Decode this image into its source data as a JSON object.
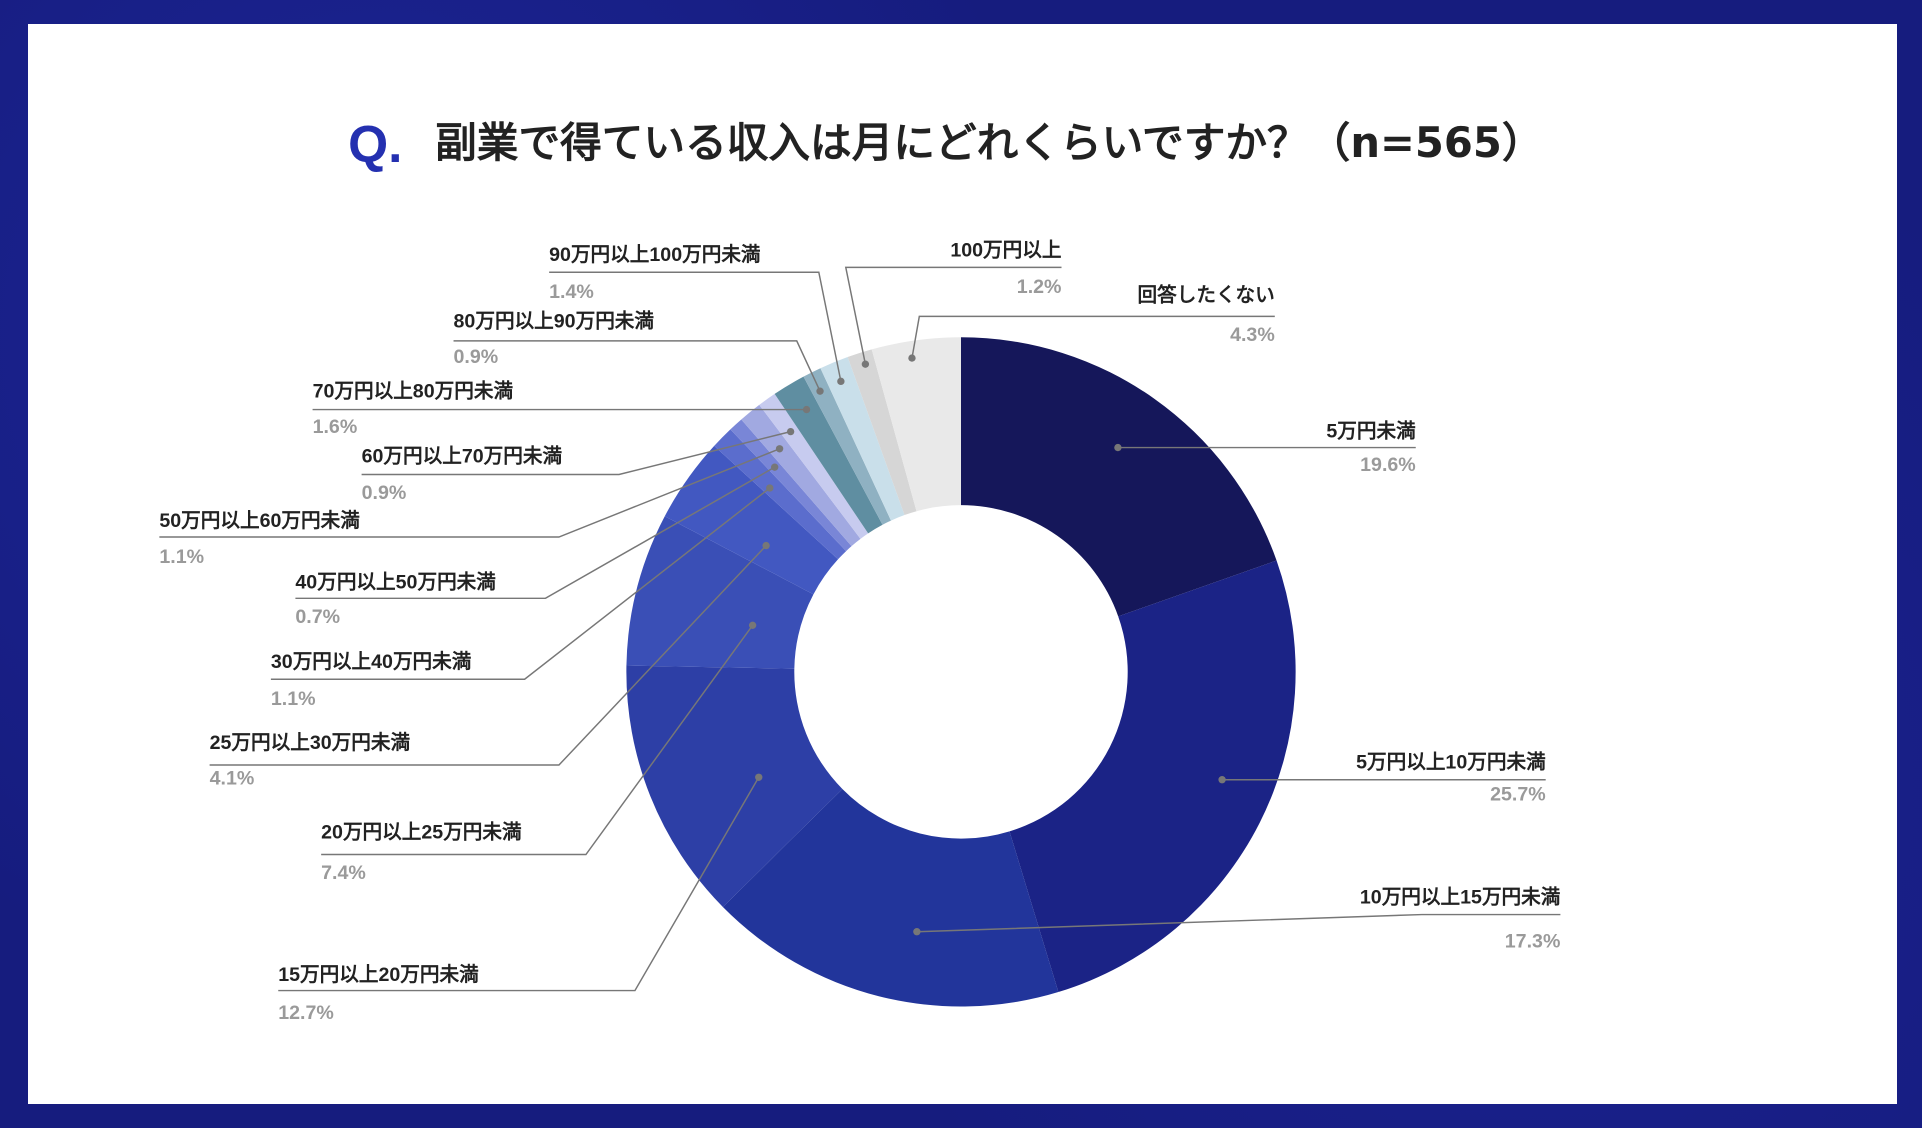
{
  "chart_data": {
    "type": "pie",
    "donut": true,
    "title_prefix": "Q.",
    "title": "副業で得ている収入は月にどれくらいですか？（n=565）",
    "categories": [
      "5万円未満",
      "5万円以上10万円未満",
      "10万円以上15万円未満",
      "15万円以上20万円未満",
      "20万円以上25万円未満",
      "25万円以上30万円未満",
      "30万円以上40万円未満",
      "40万円以上50万円未満",
      "50万円以上60万円未満",
      "60万円以上70万円未満",
      "70万円以上80万円未満",
      "80万円以上90万円未満",
      "90万円以上100万円未満",
      "100万円以上",
      "回答したくない"
    ],
    "values": [
      19.6,
      25.7,
      17.3,
      12.7,
      7.4,
      4.1,
      1.1,
      0.7,
      1.1,
      0.9,
      1.6,
      0.9,
      1.4,
      1.2,
      4.3
    ],
    "value_labels": [
      "19.6%",
      "25.7%",
      "17.3%",
      "12.7%",
      "7.4%",
      "4.1%",
      "1.1%",
      "0.7%",
      "1.1%",
      "0.9%",
      "1.6%",
      "0.9%",
      "1.4%",
      "1.2%",
      "4.3%"
    ],
    "colors": [
      "#15175a",
      "#1b2386",
      "#22359b",
      "#2d3fa6",
      "#3a4fb6",
      "#4258c1",
      "#5b6dcd",
      "#7986d7",
      "#a1a9e1",
      "#c7cbef",
      "#5f8ea1",
      "#8fb1c2",
      "#c9dfea",
      "#d6d6d6",
      "#e9e9e9"
    ],
    "legend": "callout-labels"
  }
}
